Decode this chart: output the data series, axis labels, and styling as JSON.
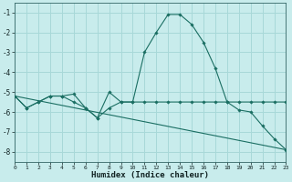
{
  "xlabel": "Humidex (Indice chaleur)",
  "background_color": "#c8ecec",
  "grid_color": "#a8d8d8",
  "line_color": "#1a6e62",
  "xlim": [
    0,
    23
  ],
  "ylim": [
    -8.5,
    -0.5
  ],
  "yticks": [
    -8,
    -7,
    -6,
    -5,
    -4,
    -3,
    -2,
    -1
  ],
  "xticks": [
    0,
    1,
    2,
    3,
    4,
    5,
    6,
    7,
    8,
    9,
    10,
    11,
    12,
    13,
    14,
    15,
    16,
    17,
    18,
    19,
    20,
    21,
    22,
    23
  ],
  "curve1_x": [
    0,
    1,
    2,
    3,
    4,
    5,
    6,
    7,
    8,
    9,
    10,
    11,
    12,
    13,
    14,
    15,
    16,
    17,
    18,
    19,
    20,
    21,
    22,
    23
  ],
  "curve1_y": [
    -5.2,
    -5.8,
    -5.5,
    -5.2,
    -5.2,
    -5.1,
    -5.8,
    -6.3,
    -5.0,
    -5.5,
    -5.5,
    -3.0,
    -2.0,
    -1.1,
    -1.1,
    -1.6,
    -2.5,
    -3.8,
    -5.5,
    -5.9,
    -6.0,
    -6.7,
    -7.35,
    -7.9
  ],
  "curve2_x": [
    0,
    1,
    2,
    3,
    4,
    5,
    6,
    7,
    8,
    9,
    10,
    11,
    12,
    13,
    14,
    15,
    16,
    17,
    18,
    19,
    20,
    21,
    22,
    23
  ],
  "curve2_y": [
    -5.2,
    -5.8,
    -5.5,
    -5.2,
    -5.2,
    -5.5,
    -5.8,
    -6.3,
    -5.8,
    -5.5,
    -5.5,
    -5.5,
    -5.5,
    -5.5,
    -5.5,
    -5.5,
    -5.5,
    -5.5,
    -5.5,
    -5.5,
    -5.5,
    -5.5,
    -5.5,
    -5.5
  ],
  "line3_x": [
    0,
    23
  ],
  "line3_y": [
    -5.2,
    -7.9
  ]
}
